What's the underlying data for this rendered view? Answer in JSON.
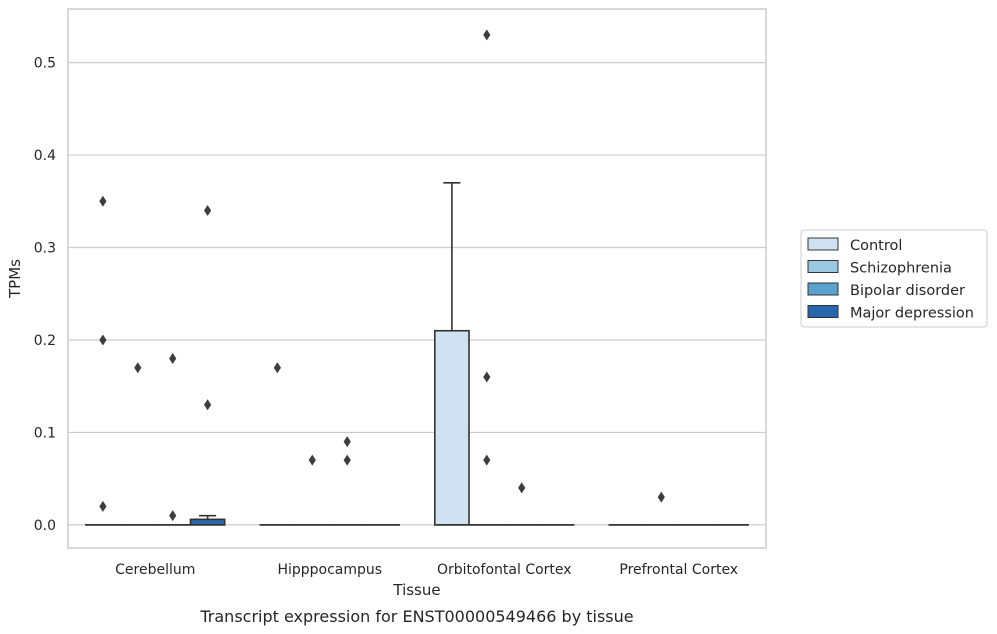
{
  "chart_data": {
    "type": "box",
    "title": "",
    "caption": "Transcript expression for ENST00000549466 by tissue",
    "xlabel": "Tissue",
    "ylabel": "TPMs",
    "ylim": [
      -0.025,
      0.558
    ],
    "yticks": [
      0.0,
      0.1,
      0.2,
      0.3,
      0.4,
      0.5
    ],
    "ytick_labels": [
      "0.0",
      "0.1",
      "0.2",
      "0.3",
      "0.4",
      "0.5"
    ],
    "grid": true,
    "legend_position": "right",
    "categories": [
      "Cerebellum",
      "Hipppocampus",
      "Orbitofontal Cortex",
      "Prefrontal Cortex"
    ],
    "series": [
      {
        "name": "Control",
        "color": "#d0e1f2",
        "boxes": [
          {
            "q1": 0,
            "median": 0,
            "q3": 0,
            "whislo": 0,
            "whishi": 0,
            "fliers": [
              0.35,
              0.2,
              0.02
            ]
          },
          {
            "q1": 0,
            "median": 0,
            "q3": 0,
            "whislo": 0,
            "whishi": 0,
            "fliers": [
              0.17
            ]
          },
          {
            "q1": 0,
            "median": 0,
            "q3": 0.21,
            "whislo": 0,
            "whishi": 0.37,
            "fliers": []
          },
          {
            "q1": 0,
            "median": 0,
            "q3": 0,
            "whislo": 0,
            "whishi": 0,
            "fliers": []
          }
        ]
      },
      {
        "name": "Schizophrenia",
        "color": "#9ac8e0",
        "boxes": [
          {
            "q1": 0,
            "median": 0,
            "q3": 0,
            "whislo": 0,
            "whishi": 0,
            "fliers": [
              0.17
            ]
          },
          {
            "q1": 0,
            "median": 0,
            "q3": 0,
            "whislo": 0,
            "whishi": 0,
            "fliers": [
              0.07
            ]
          },
          {
            "q1": 0,
            "median": 0,
            "q3": 0,
            "whislo": 0,
            "whishi": 0,
            "fliers": [
              0.53,
              0.16,
              0.07
            ]
          },
          {
            "q1": 0,
            "median": 0,
            "q3": 0,
            "whislo": 0,
            "whishi": 0,
            "fliers": [
              0.03
            ]
          }
        ]
      },
      {
        "name": "Bipolar disorder",
        "color": "#5ba3cf",
        "boxes": [
          {
            "q1": 0,
            "median": 0,
            "q3": 0,
            "whislo": 0,
            "whishi": 0,
            "fliers": [
              0.18,
              0.01
            ]
          },
          {
            "q1": 0,
            "median": 0,
            "q3": 0,
            "whislo": 0,
            "whishi": 0,
            "fliers": [
              0.09,
              0.07
            ]
          },
          {
            "q1": 0,
            "median": 0,
            "q3": 0,
            "whislo": 0,
            "whishi": 0,
            "fliers": [
              0.04
            ]
          },
          {
            "q1": 0,
            "median": 0,
            "q3": 0,
            "whislo": 0,
            "whishi": 0,
            "fliers": []
          }
        ]
      },
      {
        "name": "Major depression",
        "color": "#2767ac",
        "boxes": [
          {
            "q1": 0,
            "median": 0,
            "q3": 0.006,
            "whislo": 0,
            "whishi": 0.01,
            "fliers": [
              0.34,
              0.13
            ]
          },
          {
            "q1": 0,
            "median": 0,
            "q3": 0,
            "whislo": 0,
            "whishi": 0,
            "fliers": []
          },
          {
            "q1": 0,
            "median": 0,
            "q3": 0,
            "whislo": 0,
            "whishi": 0,
            "fliers": []
          },
          {
            "q1": 0,
            "median": 0,
            "q3": 0,
            "whislo": 0,
            "whishi": 0,
            "fliers": []
          }
        ]
      }
    ]
  }
}
